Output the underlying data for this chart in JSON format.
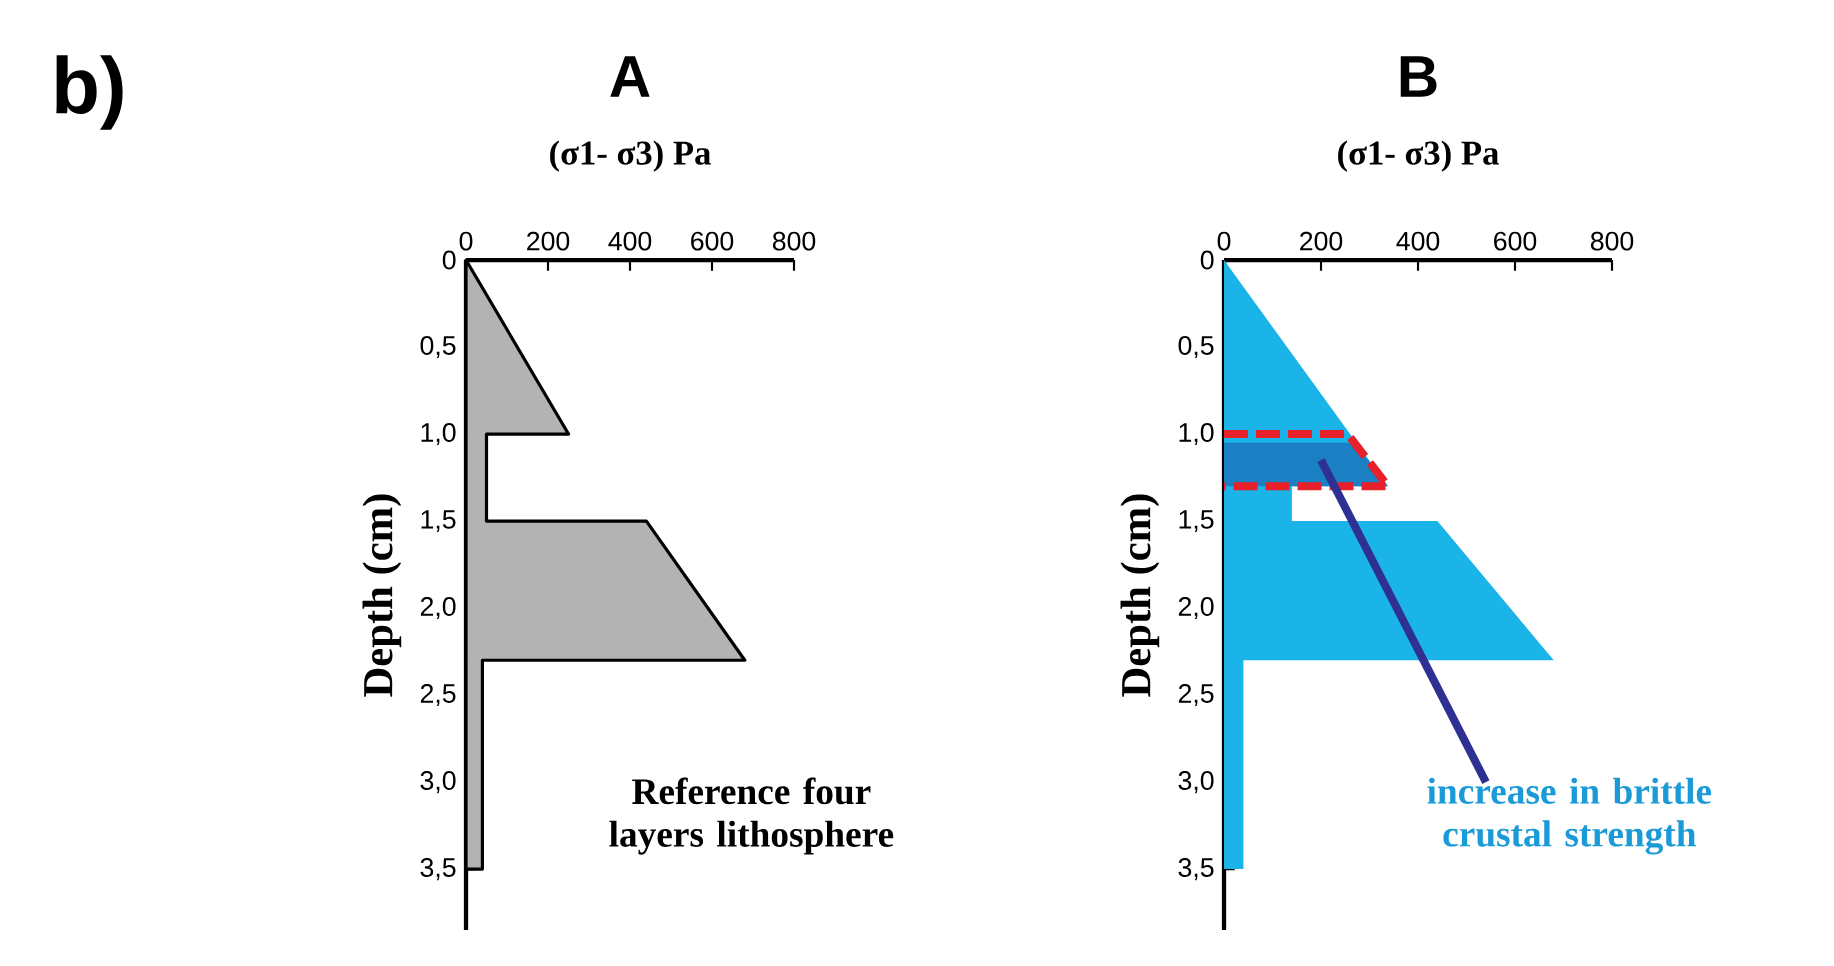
{
  "chart_data": [
    {
      "type": "area",
      "title": "A",
      "xlabel": "(σ1- σ3) Pa",
      "ylabel": "Depth (cm)",
      "xlim": [
        0,
        800
      ],
      "xticks": [
        0,
        200,
        400,
        600,
        800
      ],
      "ylim": [
        3.85,
        0
      ],
      "yticks": [
        0,
        {
          "value": 0.5,
          "label": "0,5"
        },
        {
          "value": 1.0,
          "label": "1,0"
        },
        {
          "value": 1.5,
          "label": "1,5"
        },
        {
          "value": 2.0,
          "label": "2,0"
        },
        {
          "value": 2.5,
          "label": "2,5"
        },
        {
          "value": 3.0,
          "label": "3,0"
        },
        {
          "value": 3.5,
          "label": "3,5"
        }
      ],
      "series": [
        {
          "color": "#b3b3b3",
          "x": [
            0,
            250,
            50,
            50,
            440,
            680,
            40,
            40,
            0
          ],
          "values": [
            0,
            1.0,
            1.0,
            1.5,
            1.5,
            2.3,
            2.3,
            3.5,
            3.5
          ]
        }
      ],
      "annotations": [
        "b)",
        "Reference four layers lithosphere"
      ]
    },
    {
      "type": "area",
      "title": "B",
      "xlabel": "(σ1- σ3) Pa",
      "ylabel": "Depth (cm)",
      "xlim": [
        0,
        800
      ],
      "xticks": [
        0,
        200,
        400,
        600,
        800
      ],
      "ylim": [
        3.85,
        0
      ],
      "yticks": [
        0,
        {
          "value": 0.5,
          "label": "0,5"
        },
        {
          "value": 1.0,
          "label": "1,0"
        },
        {
          "value": 1.5,
          "label": "1,5"
        },
        {
          "value": 2.0,
          "label": "2,0"
        },
        {
          "value": 2.5,
          "label": "2,5"
        },
        {
          "value": 3.0,
          "label": "3,0"
        },
        {
          "value": 3.5,
          "label": "3,5"
        }
      ],
      "series": [
        {
          "color": "#1ab4e8",
          "x": [
            0,
            338,
            140,
            140,
            440,
            680,
            40,
            40,
            0
          ],
          "values": [
            0,
            1.3,
            1.3,
            1.5,
            1.5,
            2.3,
            2.3,
            3.5,
            3.5
          ]
        },
        {
          "color": "#1b7fc4",
          "x": [
            0,
            270,
            338,
            0
          ],
          "values": [
            1.05,
            1.05,
            1.3,
            1.3
          ]
        },
        {
          "type": "line",
          "line_style": "dashed",
          "color": "#e8202a",
          "x": [
            0,
            255,
            338,
            0
          ],
          "values": [
            1.0,
            1.0,
            1.3,
            1.3
          ]
        },
        {
          "type": "line",
          "line_style": "solid",
          "color": "#2e3192",
          "x": [
            200,
            540
          ],
          "values": [
            1.15,
            3.0
          ]
        }
      ],
      "annotations": [
        "increase in brittle crustal strength"
      ]
    }
  ]
}
